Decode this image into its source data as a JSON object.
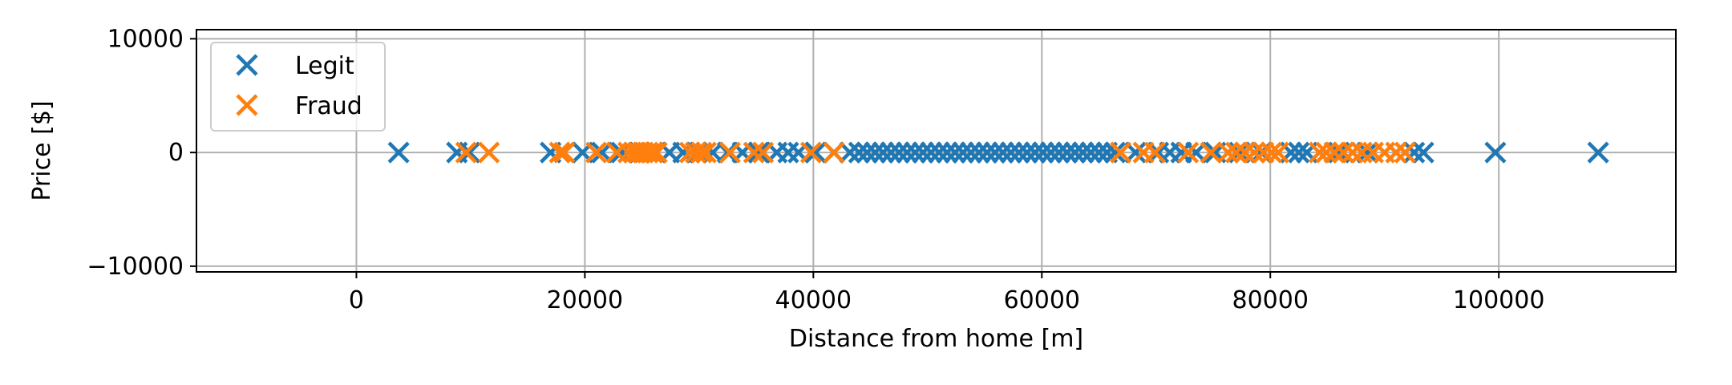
{
  "chart_data": {
    "type": "scatter",
    "xlabel": "Distance from home [m]",
    "ylabel": "Price [$]",
    "xlim": [
      -14000,
      115500
    ],
    "ylim": [
      -10500,
      10800
    ],
    "xticks": [
      0,
      20000,
      40000,
      60000,
      80000,
      100000
    ],
    "xtick_labels": [
      "0",
      "20000",
      "40000",
      "60000",
      "80000",
      "100000"
    ],
    "yticks": [
      -10000,
      0,
      10000
    ],
    "ytick_labels": [
      "−10000",
      "0",
      "10000"
    ],
    "grid": true,
    "legend": "top-left",
    "marker": "x",
    "series": [
      {
        "name": "Legit",
        "color": "#1f77b4",
        "x": [
          3700,
          8800,
          9900,
          17000,
          19800,
          21500,
          23200,
          24800,
          26200,
          27400,
          28600,
          29800,
          31200,
          32500,
          33800,
          35200,
          36800,
          37800,
          38700,
          40200,
          41800,
          43200,
          44000,
          44700,
          45400,
          46100,
          46800,
          47500,
          48200,
          48900,
          49600,
          50300,
          51000,
          51700,
          52400,
          53100,
          53800,
          54500,
          55200,
          55900,
          56600,
          57300,
          58000,
          58700,
          59400,
          60100,
          60800,
          61500,
          62200,
          62900,
          63600,
          64300,
          65000,
          65700,
          66400,
          68200,
          70200,
          71200,
          72200,
          73500,
          75200,
          77300,
          79200,
          81800,
          82500,
          83200,
          86000,
          88500,
          92600,
          93400,
          99700,
          108700
        ],
        "y": [
          0,
          0,
          0,
          0,
          0,
          0,
          0,
          0,
          0,
          0,
          0,
          0,
          0,
          0,
          0,
          0,
          0,
          0,
          0,
          0,
          0,
          0,
          0,
          0,
          0,
          0,
          0,
          0,
          0,
          0,
          0,
          0,
          0,
          0,
          0,
          0,
          0,
          0,
          0,
          0,
          0,
          0,
          0,
          0,
          0,
          0,
          0,
          0,
          0,
          0,
          0,
          0,
          0,
          0,
          0,
          0,
          0,
          0,
          0,
          0,
          0,
          0,
          0,
          0,
          0,
          0,
          0,
          0,
          0,
          0,
          0,
          0
        ]
      },
      {
        "name": "Fraud",
        "color": "#ff7f0e",
        "x": [
          9600,
          11600,
          17800,
          18200,
          21000,
          22800,
          23800,
          24300,
          24700,
          25100,
          25500,
          25900,
          26300,
          29200,
          29700,
          30200,
          30600,
          32700,
          34800,
          35600,
          39800,
          41800,
          66900,
          68900,
          69900,
          72800,
          74800,
          76300,
          77000,
          77800,
          78600,
          79400,
          80100,
          80700,
          84300,
          84900,
          85600,
          86400,
          87200,
          88000,
          89000,
          90000,
          91000,
          91800
        ],
        "y": [
          0,
          0,
          0,
          0,
          0,
          0,
          0,
          0,
          0,
          0,
          0,
          0,
          0,
          0,
          0,
          0,
          0,
          0,
          0,
          0,
          0,
          0,
          0,
          0,
          0,
          0,
          0,
          0,
          0,
          0,
          0,
          0,
          0,
          0,
          0,
          0,
          0,
          0,
          0,
          0,
          0,
          0,
          0,
          0
        ]
      }
    ]
  }
}
